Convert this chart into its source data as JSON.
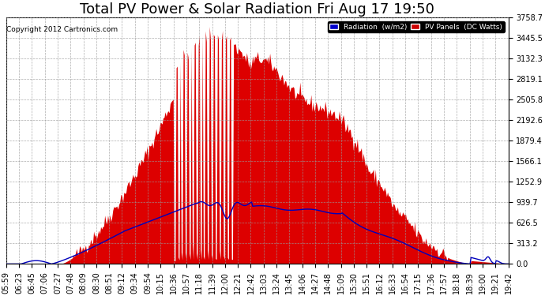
{
  "title": "Total PV Power & Solar Radiation Fri Aug 17 19:50",
  "copyright": "Copyright 2012 Cartronics.com",
  "legend_radiation": "Radiation  (w/m2)",
  "legend_pv": "PV Panels  (DC Watts)",
  "legend_radiation_color": "#0000cc",
  "legend_pv_color": "#cc0000",
  "radiation_color": "#0000bb",
  "pv_color": "#dd0000",
  "background_color": "#ffffff",
  "plot_bg_color": "#ffffff",
  "grid_color": "#999999",
  "yticks": [
    0.0,
    313.2,
    626.5,
    939.7,
    1252.9,
    1566.1,
    1879.4,
    2192.6,
    2505.8,
    2819.1,
    3132.3,
    3445.5,
    3758.7
  ],
  "ylim": [
    0,
    3758.7
  ],
  "title_fontsize": 13,
  "axis_fontsize": 7.0,
  "x_tick_labels": [
    "05:59",
    "06:23",
    "06:45",
    "07:06",
    "07:27",
    "07:48",
    "08:09",
    "08:30",
    "08:51",
    "09:12",
    "09:34",
    "09:54",
    "10:15",
    "10:36",
    "10:57",
    "11:18",
    "11:39",
    "12:00",
    "12:21",
    "12:42",
    "13:03",
    "13:24",
    "13:45",
    "14:06",
    "14:27",
    "14:48",
    "15:09",
    "15:30",
    "15:51",
    "16:12",
    "16:33",
    "16:54",
    "17:15",
    "17:36",
    "17:57",
    "18:18",
    "18:39",
    "19:00",
    "19:21",
    "19:42"
  ],
  "n_xticks": 40
}
